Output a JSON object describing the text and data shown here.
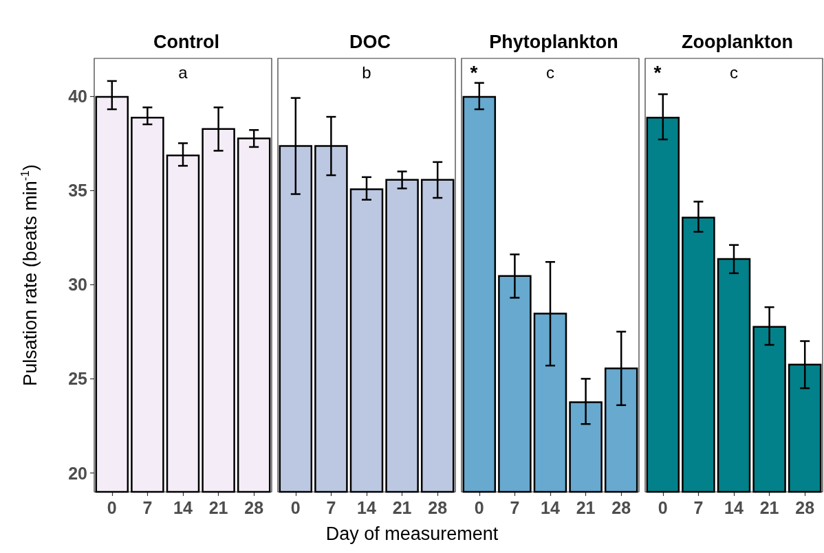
{
  "chart_data": [
    {
      "type": "bar",
      "title": "Control",
      "ylabel": "Pulsation rate (beats min$^{-1}$)",
      "xlabel": "Day of measurement",
      "categories": [
        "0",
        "7",
        "14",
        "21",
        "28"
      ],
      "values": [
        40.0,
        38.9,
        36.9,
        38.3,
        37.8
      ],
      "errors": [
        [
          39.3,
          40.8
        ],
        [
          38.5,
          39.4
        ],
        [
          36.3,
          37.5
        ],
        [
          37.1,
          39.4
        ],
        [
          37.3,
          38.2
        ]
      ],
      "color": "#f4ecf6",
      "ylim": [
        19,
        42
      ],
      "yticks": [
        20,
        25,
        30,
        35,
        40
      ],
      "grid": false,
      "annotations": [
        "a"
      ]
    },
    {
      "type": "bar",
      "title": "DOC",
      "categories": [
        "0",
        "7",
        "14",
        "21",
        "28"
      ],
      "values": [
        37.4,
        37.4,
        35.1,
        35.6,
        35.6
      ],
      "errors": [
        [
          34.8,
          39.9
        ],
        [
          35.8,
          38.9
        ],
        [
          34.5,
          35.7
        ],
        [
          35.1,
          36.0
        ],
        [
          34.6,
          36.5
        ]
      ],
      "color": "#bcc8e1",
      "ylim": [
        19,
        42
      ],
      "yticks": [
        20,
        25,
        30,
        35,
        40
      ],
      "grid": false,
      "tick_labels": "x",
      "annotations": [
        "b"
      ]
    },
    {
      "type": "bar",
      "title": "Phytoplankton",
      "categories": [
        "0",
        "7",
        "14",
        "21",
        "28"
      ],
      "values": [
        40.0,
        30.5,
        28.5,
        23.8,
        25.6
      ],
      "errors": [
        [
          39.3,
          40.7
        ],
        [
          29.3,
          31.6
        ],
        [
          25.7,
          31.2
        ],
        [
          22.6,
          25.0
        ],
        [
          23.6,
          27.5
        ]
      ],
      "color": "#67a9cf",
      "ylim": [
        19,
        42
      ],
      "yticks": [
        20,
        25,
        30,
        35,
        40
      ],
      "grid": false,
      "tick_labels": "x",
      "annotations": [
        "*",
        "c"
      ]
    },
    {
      "type": "bar",
      "title": "Zooplankton",
      "categories": [
        "0",
        "7",
        "14",
        "21",
        "28"
      ],
      "values": [
        38.9,
        33.6,
        31.4,
        27.8,
        25.8
      ],
      "errors": [
        [
          37.7,
          40.1
        ],
        [
          32.8,
          34.4
        ],
        [
          30.6,
          32.1
        ],
        [
          26.8,
          28.8
        ],
        [
          24.5,
          27.0
        ]
      ],
      "color": "#02818a",
      "ylim": [
        19,
        42
      ],
      "yticks": [
        20,
        25,
        30,
        35,
        40
      ],
      "grid": false,
      "tick_labels": "x",
      "annotations": [
        "*",
        "c"
      ]
    }
  ]
}
